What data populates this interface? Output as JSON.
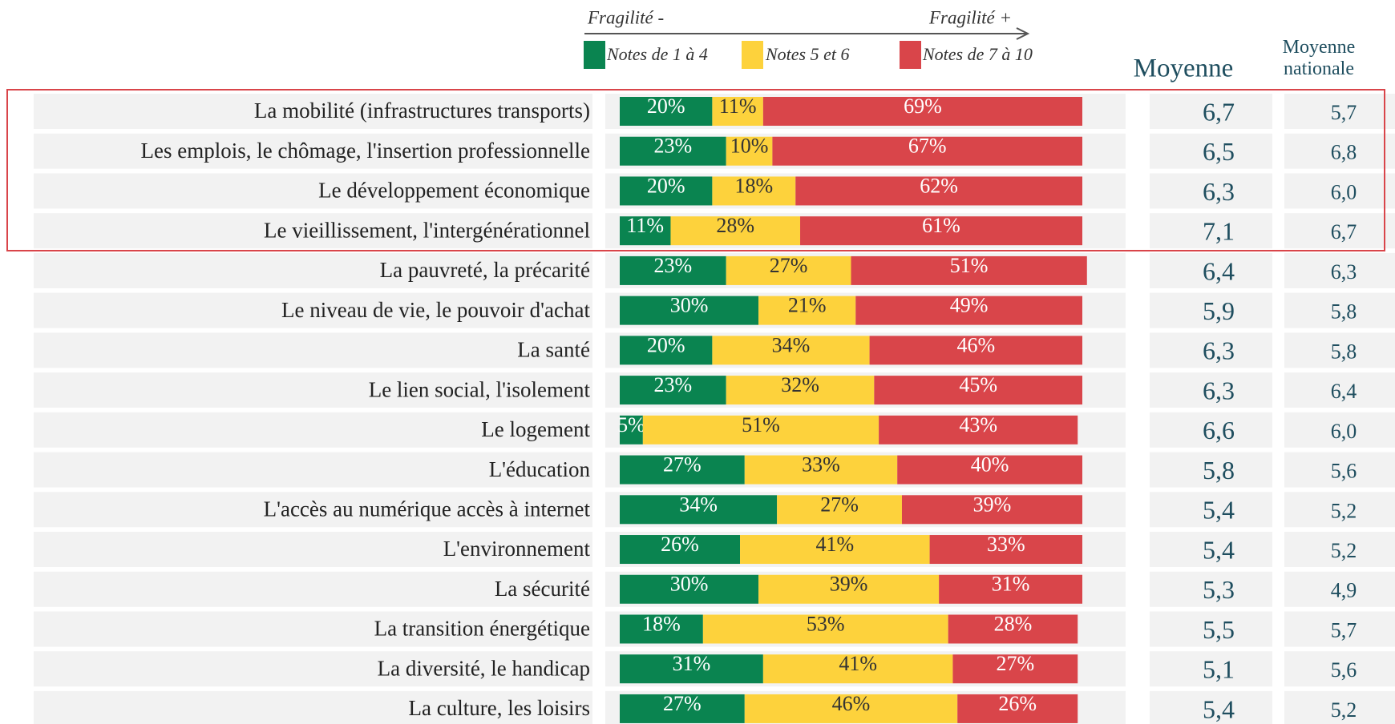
{
  "chart_data": {
    "type": "stacked-bar-horizontal",
    "annotations": [
      "Fragilité -",
      "Fragilité +"
    ],
    "categories": [
      "La mobilité (infrastructures transports)",
      "Les emplois, le chômage, l'insertion professionnelle",
      "Le développement économique",
      "Le vieillissement, l'intergénérationnel",
      "La pauvreté, la précarité",
      "Le niveau de vie, le pouvoir d'achat",
      "La santé",
      "Le lien social, l'isolement",
      "Le logement",
      "L'éducation",
      "L'accès au numérique accès à internet",
      "L'environnement",
      "La sécurité",
      "La transition énergétique",
      "La diversité, le handicap",
      "La culture, les loisirs"
    ],
    "xlim": [
      0,
      100
    ],
    "series": [
      {
        "name": "Notes de 1 à 4",
        "color": "#0a8450",
        "text_color": "#ffffff",
        "values": [
          20,
          23,
          20,
          11,
          23,
          30,
          20,
          23,
          5,
          27,
          34,
          26,
          30,
          18,
          31,
          27
        ],
        "value_labels": [
          "20%",
          "23%",
          "20%",
          "11%",
          "23%",
          "30%",
          "20%",
          "23%",
          "5%",
          "27%",
          "34%",
          "26%",
          "30%",
          "18%",
          "31%",
          "27%"
        ]
      },
      {
        "name": "Notes 5 et 6",
        "color": "#fdd23c",
        "text_color": "#333333",
        "values": [
          11,
          10,
          18,
          28,
          27,
          21,
          34,
          32,
          51,
          33,
          27,
          41,
          39,
          53,
          41,
          46
        ],
        "value_labels": [
          "11%",
          "10%",
          "18%",
          "28%",
          "27%",
          "21%",
          "34%",
          "32%",
          "51%",
          "33%",
          "27%",
          "41%",
          "39%",
          "53%",
          "41%",
          "46%"
        ]
      },
      {
        "name": "Notes de 7 à 10",
        "color": "#d9454a",
        "text_color": "#ffffff",
        "values": [
          69,
          67,
          62,
          61,
          51,
          49,
          46,
          45,
          43,
          40,
          39,
          33,
          31,
          28,
          27,
          26
        ],
        "value_labels": [
          "69%",
          "67%",
          "62%",
          "61%",
          "51%",
          "49%",
          "46%",
          "45%",
          "43%",
          "40%",
          "39%",
          "33%",
          "31%",
          "28%",
          "27%",
          "26%"
        ]
      }
    ],
    "columns": [
      {
        "name": "Moyenne",
        "values": [
          6.7,
          6.5,
          6.3,
          7.1,
          6.4,
          5.9,
          6.3,
          6.3,
          6.6,
          5.8,
          5.4,
          5.4,
          5.3,
          5.5,
          5.1,
          5.4
        ],
        "value_labels": [
          "6,7",
          "6,5",
          "6,3",
          "7,1",
          "6,4",
          "5,9",
          "6,3",
          "6,3",
          "6,6",
          "5,8",
          "5,4",
          "5,4",
          "5,3",
          "5,5",
          "5,1",
          "5,4"
        ]
      },
      {
        "name": "Moyenne nationale",
        "values": [
          5.7,
          6.8,
          6.0,
          6.7,
          6.3,
          5.8,
          5.8,
          6.4,
          6.0,
          5.6,
          5.2,
          5.2,
          4.9,
          5.7,
          5.6,
          5.2
        ],
        "value_labels": [
          "5,7",
          "6,8",
          "6,0",
          "6,7",
          "6,3",
          "5,8",
          "5,8",
          "6,4",
          "6,0",
          "5,6",
          "5,2",
          "5,2",
          "4,9",
          "5,7",
          "5,6",
          "5,2"
        ]
      }
    ]
  }
}
